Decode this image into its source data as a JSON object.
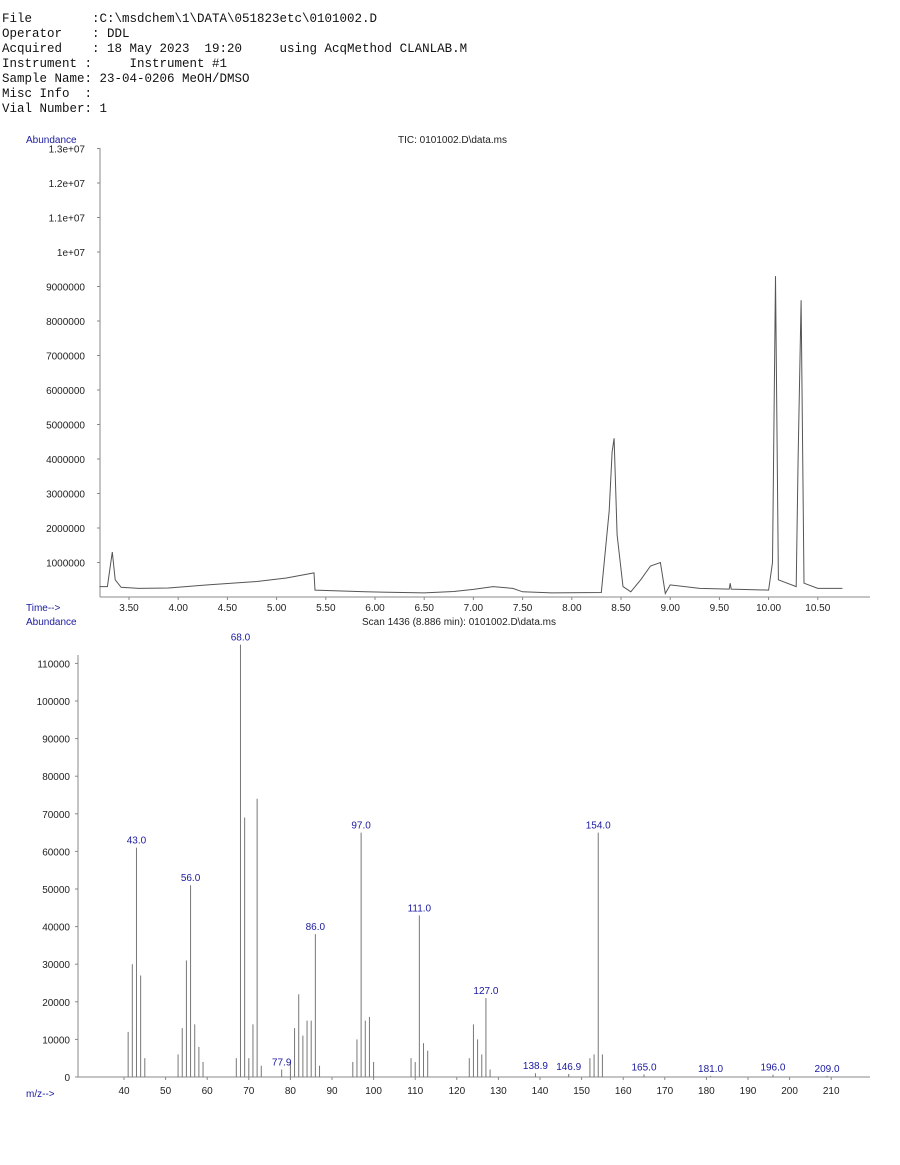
{
  "header": {
    "file": "File        :C:\\msdchem\\1\\DATA\\051823etc\\0101002.D",
    "operator": "Operator    : DDL",
    "acquired": "Acquired    : 18 May 2023  19:20     using AcqMethod CLANLAB.M",
    "instrument": "Instrument :     Instrument #1",
    "sample_name": "Sample Name: 23-04-0206 MeOH/DMSO",
    "misc_info": "Misc Info  :",
    "vial_number": "Vial Number: 1"
  },
  "chart_data": [
    {
      "type": "line",
      "title": "TIC: 0101002.D\\data.ms",
      "ylabel": "Abundance",
      "xlabel": "Time-->",
      "xlim": [
        3.2,
        10.75
      ],
      "ylim": [
        0,
        13000000
      ],
      "xticks": [
        "3.50",
        "4.00",
        "4.50",
        "5.00",
        "5.50",
        "6.00",
        "6.50",
        "7.00",
        "7.50",
        "8.00",
        "8.50",
        "9.00",
        "9.50",
        "10.00",
        "10.50"
      ],
      "yticks": [
        "1000000",
        "2000000",
        "3000000",
        "4000000",
        "5000000",
        "6000000",
        "7000000",
        "8000000",
        "9000000",
        "1e+07",
        "1.1e+07",
        "1.2e+07",
        "1.3e+07"
      ],
      "x": [
        3.2,
        3.28,
        3.31,
        3.33,
        3.36,
        3.42,
        3.6,
        3.9,
        4.3,
        4.8,
        5.1,
        5.38,
        5.39,
        5.9,
        6.5,
        6.8,
        7.0,
        7.2,
        7.4,
        7.5,
        7.8,
        8.3,
        8.38,
        8.41,
        8.43,
        8.46,
        8.52,
        8.6,
        8.7,
        8.8,
        8.9,
        8.95,
        9.0,
        9.3,
        9.6,
        9.61,
        9.62,
        10.0,
        10.04,
        10.07,
        10.1,
        10.28,
        10.3,
        10.33,
        10.36,
        10.5,
        10.75
      ],
      "y": [
        300000,
        300000,
        900000,
        1300000,
        500000,
        280000,
        250000,
        260000,
        350000,
        450000,
        550000,
        700000,
        200000,
        150000,
        120000,
        160000,
        220000,
        300000,
        250000,
        150000,
        120000,
        130000,
        2500000,
        4200000,
        4600000,
        1800000,
        300000,
        150000,
        500000,
        900000,
        1000000,
        100000,
        350000,
        250000,
        230000,
        400000,
        230000,
        200000,
        1000000,
        9300000,
        500000,
        300000,
        4000000,
        8600000,
        400000,
        250000,
        250000
      ]
    },
    {
      "type": "bar",
      "title": "Scan 1436 (8.886 min): 0101002.D\\data.ms",
      "ylabel": "Abundance",
      "xlabel": "m/z-->",
      "xlim": [
        30,
        220
      ],
      "ylim": [
        0,
        115000
      ],
      "xticks": [
        "40",
        "50",
        "60",
        "70",
        "80",
        "90",
        "100",
        "110",
        "120",
        "130",
        "140",
        "150",
        "160",
        "170",
        "180",
        "190",
        "200",
        "210"
      ],
      "yticks": [
        "0",
        "10000",
        "20000",
        "30000",
        "40000",
        "50000",
        "60000",
        "70000",
        "80000",
        "90000",
        "100000",
        "110000"
      ],
      "mz": [
        41,
        42,
        43,
        44,
        45,
        53,
        54,
        55,
        56,
        57,
        58,
        59,
        67,
        68,
        69,
        70,
        71,
        72,
        73,
        77.9,
        80,
        81,
        82,
        83,
        84,
        85,
        86,
        87,
        95,
        96,
        97,
        98,
        99,
        100,
        109,
        110,
        111,
        112,
        113,
        123,
        124,
        125,
        126,
        127,
        128,
        138.9,
        146.9,
        152,
        153,
        154,
        155,
        165,
        181,
        196,
        209
      ],
      "abundance": [
        12000,
        30000,
        61000,
        27000,
        5000,
        6000,
        13000,
        31000,
        51000,
        14000,
        8000,
        4000,
        5000,
        115000,
        69000,
        5000,
        14000,
        74000,
        3000,
        2000,
        4000,
        13000,
        22000,
        11000,
        15000,
        15000,
        38000,
        3000,
        4000,
        10000,
        65000,
        15000,
        16000,
        4000,
        5000,
        4000,
        43000,
        9000,
        7000,
        5000,
        14000,
        10000,
        6000,
        21000,
        2000,
        1000,
        800,
        5000,
        6000,
        65000,
        6000,
        700,
        300,
        600,
        300
      ],
      "labels": [
        "43.0",
        "56.0",
        "68.0",
        "77.9",
        "86.0",
        "97.0",
        "111.0",
        "127.0",
        "138.9",
        "146.9",
        "154.0",
        "165.0",
        "181.0",
        "196.0",
        "209.0"
      ],
      "label_mz": [
        43,
        56,
        68,
        77.9,
        86,
        97,
        111,
        127,
        138.9,
        146.9,
        154,
        165,
        181,
        196,
        209
      ]
    }
  ]
}
